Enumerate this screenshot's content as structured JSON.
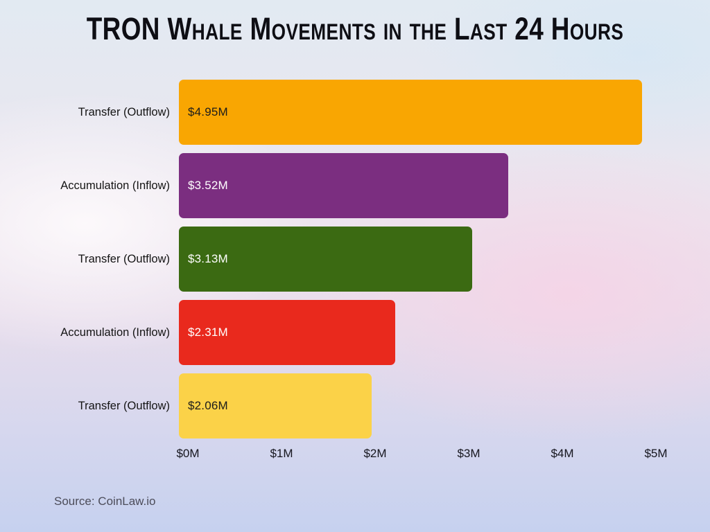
{
  "title": "TRON Whale Movements in the Last 24 Hours",
  "source": "Source: CoinLaw.io",
  "chart_data": {
    "type": "bar",
    "orientation": "horizontal",
    "title": "TRON Whale Movements in the Last 24 Hours",
    "categories": [
      "Transfer (Outflow)",
      "Accumulation (Inflow)",
      "Transfer (Outflow)",
      "Accumulation (Inflow)",
      "Transfer (Outflow)"
    ],
    "values": [
      4.95,
      3.52,
      3.13,
      2.31,
      2.06
    ],
    "value_labels": [
      "$4.95M",
      "$3.52M",
      "$3.13M",
      "$2.31M",
      "$2.06M"
    ],
    "bar_colors": [
      "#F9A602",
      "#7B2E80",
      "#3B6A12",
      "#E9291D",
      "#FBD248"
    ],
    "value_label_colors": [
      "#1c1c1c",
      "#ffffff",
      "#ffffff",
      "#ffffff",
      "#1c1c1c"
    ],
    "x_ticks": [
      "$0M",
      "$1M",
      "$2M",
      "$3M",
      "$4M",
      "$5M"
    ],
    "xlim": [
      0,
      5
    ],
    "xlabel": "",
    "ylabel": "",
    "grid": false,
    "legend": "none"
  }
}
